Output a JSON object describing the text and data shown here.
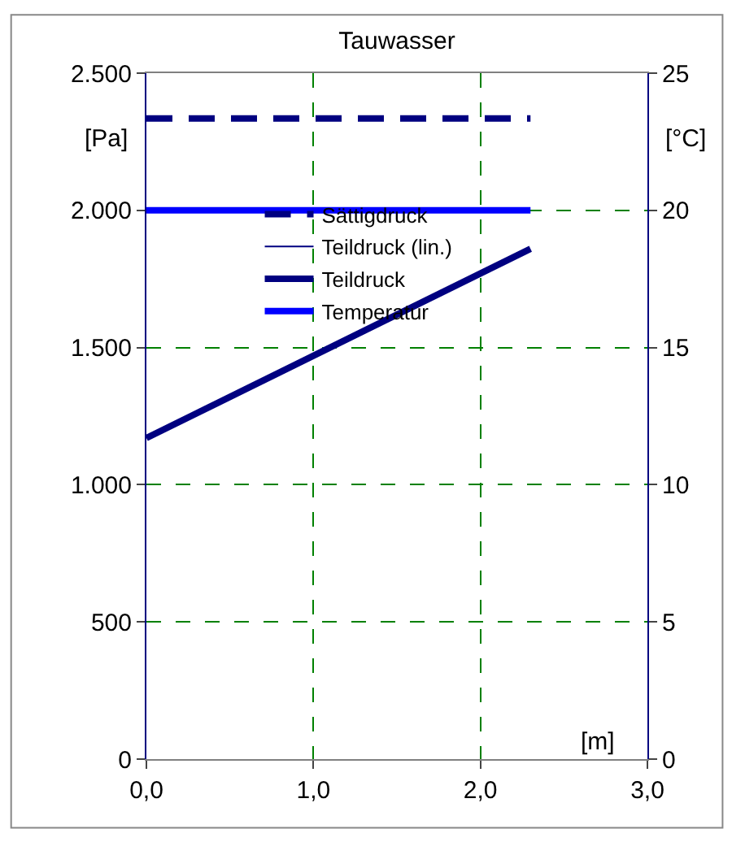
{
  "chart_data": {
    "type": "line",
    "title": "Tauwasser",
    "xlabel": "[m]",
    "ylabel": "[Pa]",
    "y2label": "[°C]",
    "x": [
      0,
      2.3
    ],
    "series": [
      {
        "name": "Sättigdruck",
        "color": "#000080",
        "values": [
          2335,
          2335
        ],
        "line_style": "dashed"
      },
      {
        "name": "Teildruck (lin.)",
        "color": "#000080",
        "values": [
          null,
          null
        ],
        "line_style": "solid"
      },
      {
        "name": "Teildruck",
        "color": "#000080",
        "values": [
          1170,
          1860
        ],
        "line_style": "solid"
      },
      {
        "name": "Temperatur",
        "color": "#0000ff",
        "values": [
          20,
          20
        ],
        "axis": "y2",
        "line_style": "solid"
      }
    ],
    "xlim": [
      0,
      3
    ],
    "xticks": [
      {
        "value": 0,
        "label": "0,0"
      },
      {
        "value": 1,
        "label": "1,0"
      },
      {
        "value": 2,
        "label": "2,0"
      },
      {
        "value": 3,
        "label": "3,0"
      }
    ],
    "ylim": [
      0,
      2500
    ],
    "yticks": [
      0,
      500,
      {
        "value": 1000,
        "label": "1.000"
      },
      {
        "value": 1500,
        "label": "1.500"
      },
      {
        "value": 2000,
        "label": "2.000"
      },
      {
        "value": 2500,
        "label": "2.500"
      }
    ],
    "y2lim": [
      0,
      25
    ],
    "y2ticks": [
      0,
      5,
      10,
      15,
      20,
      25
    ],
    "grid": true,
    "legend": "top",
    "marker": "none"
  }
}
